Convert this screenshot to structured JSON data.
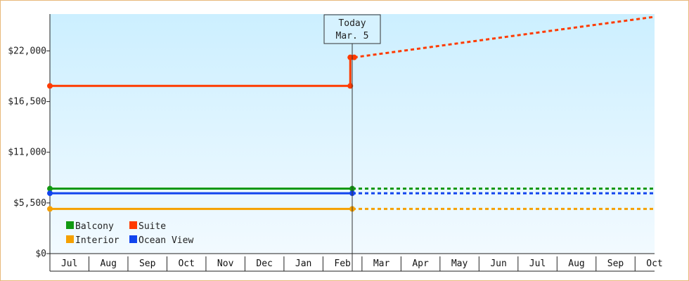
{
  "chart_data": {
    "type": "line",
    "title": "",
    "xlabel": "",
    "ylabel": "",
    "ylim": [
      0,
      26000
    ],
    "y_ticks": [
      {
        "value": 0,
        "label": "$0"
      },
      {
        "value": 5500,
        "label": "$5,500"
      },
      {
        "value": 11000,
        "label": "$11,000"
      },
      {
        "value": 16500,
        "label": "$16,500"
      },
      {
        "value": 22000,
        "label": "$22,000"
      }
    ],
    "months": [
      "Jul",
      "Aug",
      "Sep",
      "Oct",
      "Nov",
      "Dec",
      "Jan",
      "Feb",
      "Mar",
      "Apr",
      "May",
      "Jun",
      "Jul",
      "Aug",
      "Sep",
      "Oct"
    ],
    "today": {
      "line1": "Today",
      "line2": "Mar. 5",
      "x": 7.75
    },
    "grid": false,
    "legend_position": "bottom-left",
    "series": [
      {
        "name": "Balcony",
        "color": "#119911",
        "actual": [
          [
            0,
            7050
          ],
          [
            7.75,
            7050
          ]
        ],
        "projected": [
          [
            7.75,
            7050
          ],
          [
            15.5,
            7050
          ]
        ]
      },
      {
        "name": "Suite",
        "color": "#ff3b00",
        "actual": [
          [
            0,
            18200
          ],
          [
            7.7,
            18200
          ],
          [
            7.7,
            21300
          ],
          [
            7.8,
            21300
          ]
        ],
        "projected": [
          [
            7.8,
            21300
          ],
          [
            15.5,
            25700
          ]
        ]
      },
      {
        "name": "Interior",
        "color": "#f5a000",
        "actual": [
          [
            0,
            4850
          ],
          [
            7.75,
            4850
          ]
        ],
        "projected": [
          [
            7.75,
            4850
          ],
          [
            15.5,
            4850
          ]
        ]
      },
      {
        "name": "Ocean View",
        "color": "#1144ee",
        "actual": [
          [
            0,
            6550
          ],
          [
            7.75,
            6550
          ]
        ],
        "projected": [
          [
            7.75,
            6550
          ],
          [
            15.5,
            6550
          ]
        ]
      }
    ]
  }
}
